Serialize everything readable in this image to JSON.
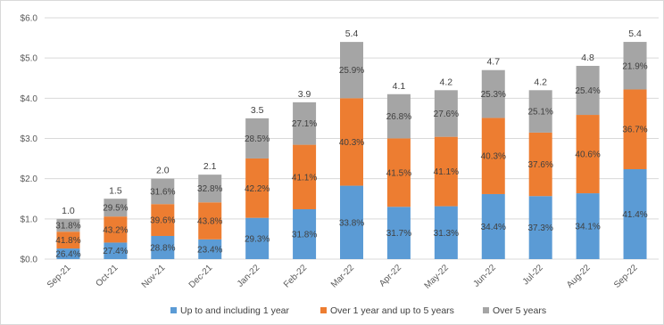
{
  "chart_data": {
    "type": "bar",
    "stacked": true,
    "title": "",
    "xlabel": "",
    "ylabel": "",
    "ylim": [
      0,
      6
    ],
    "y_ticks": [
      "$0.0",
      "$1.0",
      "$2.0",
      "$3.0",
      "$4.0",
      "$5.0",
      "$6.0"
    ],
    "grid": true,
    "legend_position": "bottom",
    "categories": [
      "Sep-21",
      "Oct-21",
      "Nov-21",
      "Dec-21",
      "Jan-22",
      "Feb-22",
      "Mar-22",
      "Apr-22",
      "May-22",
      "Jun-22",
      "Jul-22",
      "Aug-22",
      "Sep-22"
    ],
    "totals": [
      1.0,
      1.5,
      2.0,
      2.1,
      3.5,
      3.9,
      5.4,
      4.1,
      4.2,
      4.7,
      4.2,
      4.8,
      5.4
    ],
    "total_labels": [
      "1.0",
      "1.5",
      "2.0",
      "2.1",
      "3.5",
      "3.9",
      "5.4",
      "4.1",
      "4.2",
      "4.7",
      "4.2",
      "4.8",
      "5.4"
    ],
    "series": [
      {
        "name": "Up to and including 1 year",
        "color": "#5b9bd5",
        "values": [
          0.264,
          0.411,
          0.576,
          0.491,
          1.026,
          1.24,
          1.825,
          1.3,
          1.315,
          1.617,
          1.567,
          1.637,
          2.236
        ],
        "labels": [
          "26.4%",
          "27.4%",
          "28.8%",
          "23.4%",
          "29.3%",
          "31.8%",
          "33.8%",
          "31.7%",
          "31.3%",
          "34.4%",
          "37.3%",
          "34.1%",
          "41.4%"
        ]
      },
      {
        "name": "Over 1 year and up to 5 years",
        "color": "#ed7d31",
        "values": [
          0.418,
          0.648,
          0.792,
          0.92,
          1.477,
          1.603,
          2.176,
          1.702,
          1.726,
          1.894,
          1.579,
          1.949,
          1.982
        ],
        "labels": [
          "41.8%",
          "43.2%",
          "39.6%",
          "43.8%",
          "42.2%",
          "41.1%",
          "40.3%",
          "41.5%",
          "41.1%",
          "40.3%",
          "37.6%",
          "40.6%",
          "36.7%"
        ]
      },
      {
        "name": "Over 5 years",
        "color": "#a5a5a5",
        "values": [
          0.318,
          0.443,
          0.632,
          0.689,
          0.998,
          1.057,
          1.399,
          1.099,
          1.159,
          1.189,
          1.054,
          1.219,
          1.183
        ],
        "labels": [
          "31.8%",
          "29.5%",
          "31.6%",
          "32.8%",
          "28.5%",
          "27.1%",
          "25.9%",
          "26.8%",
          "27.6%",
          "25.3%",
          "25.1%",
          "25.4%",
          "21.9%"
        ]
      }
    ]
  }
}
